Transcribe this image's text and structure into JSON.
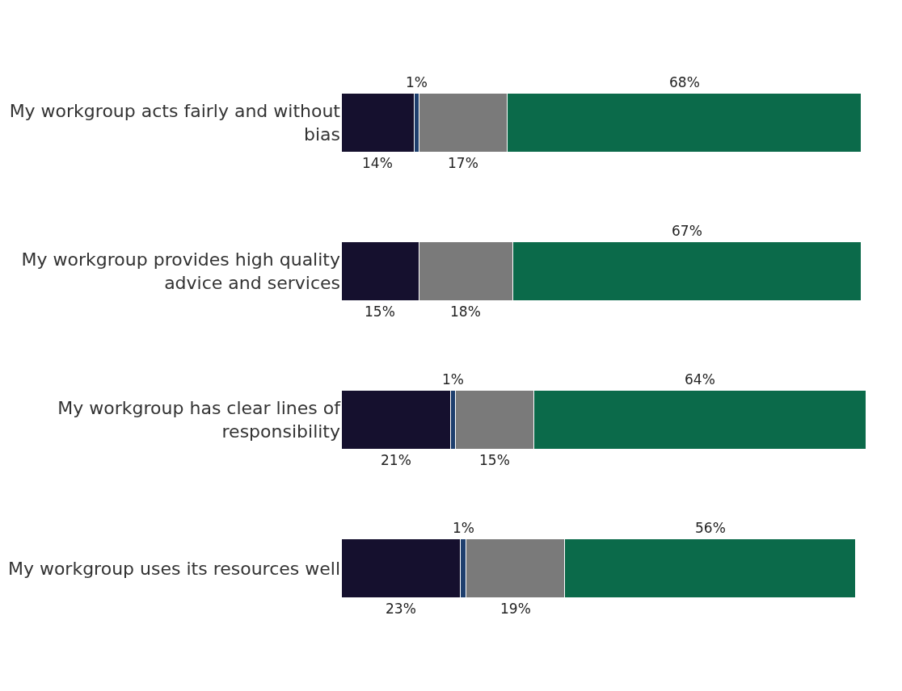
{
  "chart_data": {
    "type": "bar",
    "orientation": "horizontal",
    "stacked": true,
    "categories": [
      "My workgroup acts fairly and without bias",
      "My workgroup provides high quality advice and services",
      "My workgroup has clear lines of responsibility",
      "My workgroup uses its resources well"
    ],
    "series": [
      {
        "color": "#15102e",
        "values": [
          14,
          15,
          21,
          23
        ],
        "value_labels": [
          "14%",
          "15%",
          "21%",
          "23%"
        ]
      },
      {
        "color": "#1e3f6e",
        "values": [
          1,
          null,
          1,
          1
        ],
        "value_labels": [
          "1%",
          null,
          "1%",
          "1%"
        ]
      },
      {
        "color": "#7a7a7a",
        "values": [
          17,
          18,
          15,
          19
        ],
        "value_labels": [
          "17%",
          "18%",
          "15%",
          "19%"
        ]
      },
      {
        "color": "#0b6a4a",
        "values": [
          68,
          67,
          64,
          56
        ],
        "value_labels": [
          "68%",
          "67%",
          "64%",
          "56%"
        ]
      }
    ],
    "tick_labels": "y"
  }
}
